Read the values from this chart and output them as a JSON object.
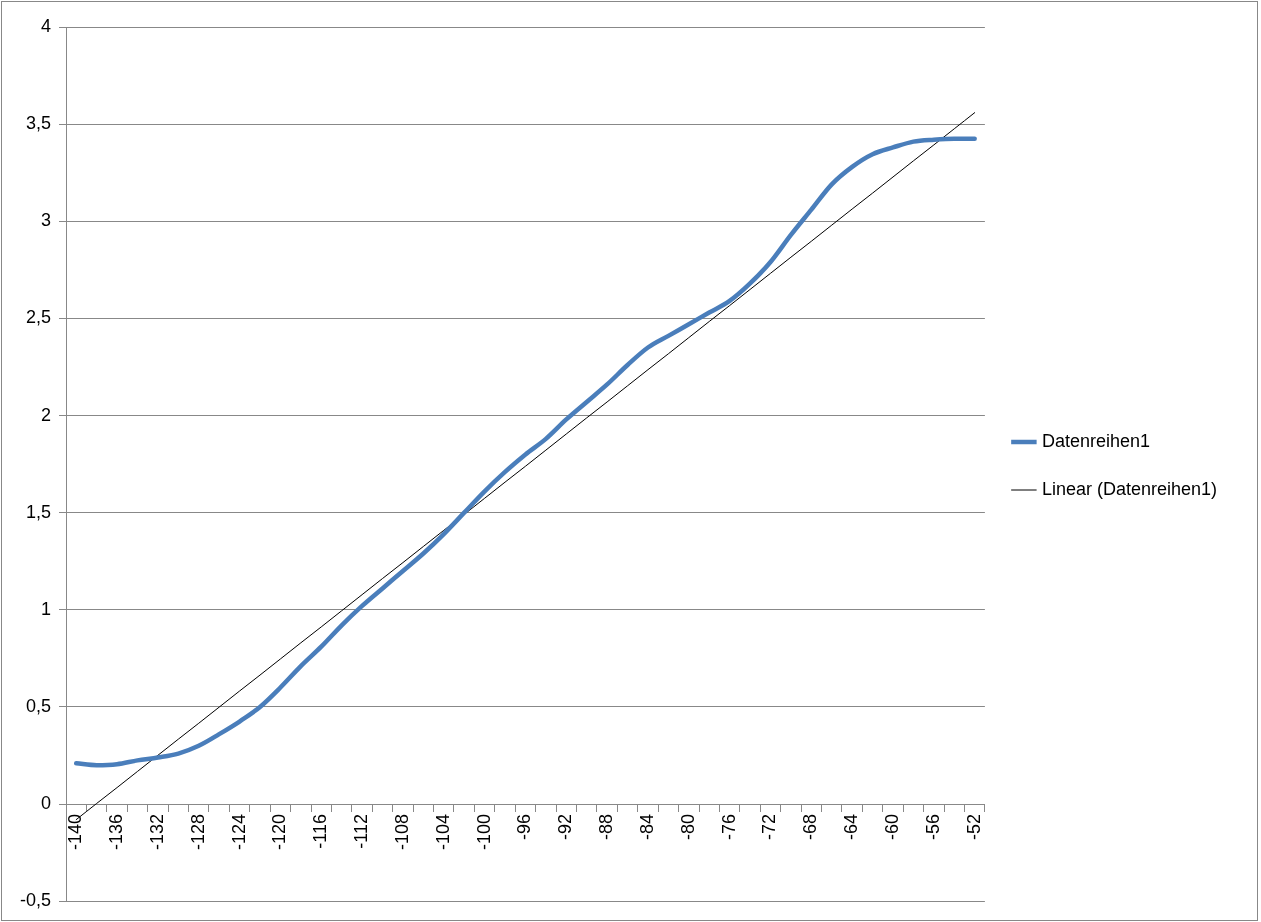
{
  "chart_data": {
    "type": "line",
    "categories": [
      "-140",
      null,
      "-136",
      null,
      "-132",
      null,
      "-128",
      null,
      "-124",
      null,
      "-120",
      null,
      "-116",
      null,
      "-112",
      null,
      "-108",
      null,
      "-104",
      null,
      "-100",
      null,
      "-96",
      null,
      "-92",
      null,
      "-88",
      null,
      "-84",
      null,
      "-80",
      null,
      "-76",
      null,
      "-72",
      null,
      "-68",
      null,
      "-64",
      null,
      "-60",
      null,
      "-56",
      null,
      "-52"
    ],
    "series": [
      {
        "name": "Datenreihen1",
        "color": "#4a7ebb",
        "values": [
          0.21,
          0.2,
          0.205,
          0.225,
          0.24,
          0.26,
          0.3,
          0.36,
          0.425,
          0.5,
          0.6,
          0.71,
          0.81,
          0.92,
          1.02,
          1.11,
          1.2,
          1.29,
          1.39,
          1.5,
          1.61,
          1.71,
          1.8,
          1.88,
          1.98,
          2.07,
          2.16,
          2.26,
          2.35,
          2.41,
          2.47,
          2.53,
          2.59,
          2.68,
          2.79,
          2.93,
          3.06,
          3.19,
          3.28,
          3.345,
          3.38,
          3.41,
          3.42,
          3.425,
          3.425
        ]
      },
      {
        "name": "Linear (Datenreihen1)",
        "color": "#000000",
        "line_style": "solid",
        "values": [
          -0.08,
          0.003,
          0.085,
          0.168,
          0.251,
          0.334,
          0.416,
          0.499,
          0.582,
          0.664,
          0.747,
          0.83,
          0.912,
          0.995,
          1.078,
          1.161,
          1.243,
          1.326,
          1.409,
          1.491,
          1.574,
          1.657,
          1.739,
          1.822,
          1.905,
          1.988,
          2.07,
          2.153,
          2.236,
          2.318,
          2.401,
          2.484,
          2.566,
          2.649,
          2.732,
          2.815,
          2.897,
          2.98,
          3.063,
          3.145,
          3.228,
          3.311,
          3.393,
          3.476,
          3.559
        ]
      }
    ],
    "ylim": [
      -0.5,
      4
    ],
    "yticks": [
      {
        "value": -0.5,
        "label": "-0,5"
      },
      0,
      {
        "value": 0.5,
        "label": "0,5"
      },
      1,
      {
        "value": 1.5,
        "label": "1,5"
      },
      2,
      {
        "value": 2.5,
        "label": "2,5"
      },
      3,
      {
        "value": 3.5,
        "label": "3,5"
      },
      4
    ],
    "grid": "y",
    "legend": "right",
    "marker": "none"
  }
}
